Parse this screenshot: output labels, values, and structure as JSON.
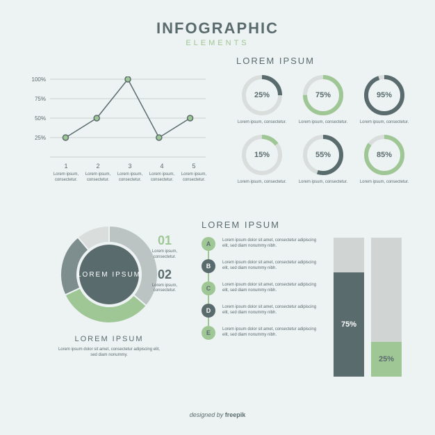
{
  "colors": {
    "background": "#edf2f2",
    "dark": "#5a6b6e",
    "green": "#9fc695",
    "light_track": "#d9dedd",
    "bar_track": "#d0d5d4",
    "white": "#ffffff"
  },
  "header": {
    "title": "INFOGRAPHIC",
    "subtitle": "ELEMENTS",
    "title_color": "#5a6b6e",
    "subtitle_color": "#9fc695"
  },
  "line_chart": {
    "type": "line",
    "yticks": [
      "100%",
      "75%",
      "50%",
      "25%"
    ],
    "ylim": [
      0,
      100
    ],
    "points": [
      {
        "x": 1,
        "y": 25
      },
      {
        "x": 2,
        "y": 50
      },
      {
        "x": 3,
        "y": 100
      },
      {
        "x": 4,
        "y": 25
      },
      {
        "x": 5,
        "y": 50
      }
    ],
    "xlabels": [
      "1",
      "2",
      "3",
      "4",
      "5"
    ],
    "xdesc": "Lorem ipsum, consectetur.",
    "grid_color": "#c9d0cf",
    "line_color": "#5a6b6e",
    "point_fill": "#9fc695",
    "point_stroke": "#5a6b6e",
    "label_color": "#5a6b6e"
  },
  "rings": {
    "title": "LOREM IPSUM",
    "title_color": "#5a6b6e",
    "track_color": "#d9dedd",
    "text_color": "#5a6b6e",
    "items": [
      {
        "pct": 25,
        "color": "#5a6b6e",
        "label": "25%",
        "desc": "Lorem ipsum, consectetur."
      },
      {
        "pct": 75,
        "color": "#9fc695",
        "label": "75%",
        "desc": "Lorem ipsum, consectetur."
      },
      {
        "pct": 95,
        "color": "#5a6b6e",
        "label": "95%",
        "desc": "Lorem ipsum, consectetur."
      },
      {
        "pct": 15,
        "color": "#9fc695",
        "label": "15%",
        "desc": "Lorem ipsum, consectetur."
      },
      {
        "pct": 55,
        "color": "#5a6b6e",
        "label": "55%",
        "desc": "Lorem ipsum, consectetur."
      },
      {
        "pct": 85,
        "color": "#9fc695",
        "label": "85%",
        "desc": "Lorem ipsum, consectetur."
      }
    ]
  },
  "big_donut": {
    "center_label": "LOREM IPSUM",
    "center_bg": "#5a6b6e",
    "segments": [
      {
        "start": -90,
        "end": 40,
        "color": "#bcc4c3"
      },
      {
        "start": 40,
        "end": 155,
        "color": "#9fc695"
      },
      {
        "start": 155,
        "end": 230,
        "color": "#7e8d8d"
      },
      {
        "start": 230,
        "end": 270,
        "color": "#d9dedd"
      }
    ],
    "legend": [
      {
        "num": "01",
        "num_color": "#9fc695",
        "desc": "Lorem ipsum, consectetur."
      },
      {
        "num": "02",
        "num_color": "#5a6b6e",
        "desc": "Lorem ipsum, consectetur."
      }
    ],
    "title": "LOREM IPSUM",
    "title_color": "#5a6b6e",
    "desc": "Lorem ipsum dolor sit amet, consectetur adipiscing elit, sed diam nonummy.",
    "desc_color": "#5a6b6e"
  },
  "timeline": {
    "title": "LOREM IPSUM",
    "title_color": "#5a6b6e",
    "line_color": "#9fc695",
    "steps": [
      {
        "label": "A",
        "bg": "#9fc695",
        "fg": "#5a6b6e",
        "desc": "Lorem ipsum dolor sit amet, consectetur adipiscing elit, sed diam nonummy nibh."
      },
      {
        "label": "B",
        "bg": "#5a6b6e",
        "fg": "#ffffff",
        "desc": "Lorem ipsum dolor sit amet, consectetur adipiscing elit, sed diam nonummy nibh."
      },
      {
        "label": "C",
        "bg": "#9fc695",
        "fg": "#5a6b6e",
        "desc": "Lorem ipsum dolor sit amet, consectetur adipiscing elit, sed diam nonummy nibh."
      },
      {
        "label": "D",
        "bg": "#5a6b6e",
        "fg": "#ffffff",
        "desc": "Lorem ipsum dolor sit amet, consectetur adipiscing elit, sed diam nonummy nibh."
      },
      {
        "label": "E",
        "bg": "#9fc695",
        "fg": "#5a6b6e",
        "desc": "Lorem ipsum dolor sit amet, consectetur adipiscing elit, sed diam nonummy nibh."
      }
    ],
    "desc_color": "#5a6b6e"
  },
  "bars": {
    "type": "bar",
    "track_color": "#d0d5d4",
    "items": [
      {
        "pct": 75,
        "label": "75%",
        "fill": "#5a6b6e",
        "text": "#ffffff"
      },
      {
        "pct": 25,
        "label": "25%",
        "fill": "#9fc695",
        "text": "#5a6b6e"
      }
    ]
  },
  "footer": {
    "by": "designed by ",
    "brand": "freepik",
    "color": "#5a6b6e"
  }
}
